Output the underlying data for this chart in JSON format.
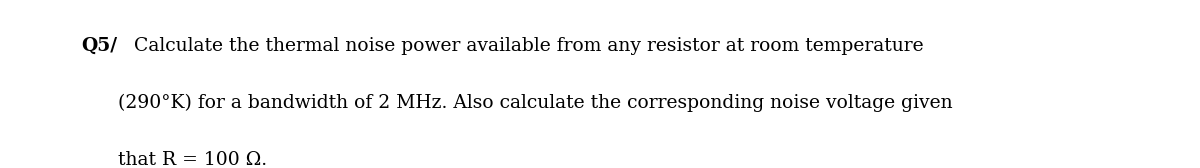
{
  "bg_color": "#ffffff",
  "label_bold": "Q5/",
  "line1_rest": " Calculate the thermal noise power available from any resistor at room temperature",
  "line2": "(290°K) for a bandwidth of 2 MHz. Also calculate the corresponding noise voltage given",
  "line3": "that R = 100 Ω.",
  "fontsize": 13.5,
  "font_family": "serif",
  "text_color": "#000000"
}
